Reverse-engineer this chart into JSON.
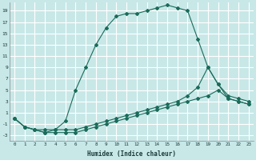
{
  "title": "",
  "xlabel": "Humidex (Indice chaleur)",
  "ylabel": "",
  "bg_color": "#c8e8e8",
  "line_color": "#1a6b5a",
  "grid_color": "#ffffff",
  "xlim": [
    -0.5,
    23.5
  ],
  "ylim": [
    -4,
    20.5
  ],
  "xticks": [
    0,
    1,
    2,
    3,
    4,
    5,
    6,
    7,
    8,
    9,
    10,
    11,
    12,
    13,
    14,
    15,
    16,
    17,
    18,
    19,
    20,
    21,
    22,
    23
  ],
  "yticks": [
    -3,
    -1,
    1,
    3,
    5,
    7,
    9,
    11,
    13,
    15,
    17,
    19
  ],
  "line1_x": [
    0,
    1,
    2,
    3,
    4,
    5,
    6,
    7,
    8,
    9,
    10,
    11,
    12,
    13,
    14,
    15,
    16,
    17,
    18,
    19,
    20,
    21,
    22,
    23
  ],
  "line1_y": [
    0,
    -1.5,
    -2,
    -2,
    -2,
    -0.5,
    5,
    9,
    13,
    16,
    18,
    18.5,
    18.5,
    19,
    19.5,
    20,
    19.5,
    19,
    14,
    9,
    6,
    3.5,
    3,
    2.5
  ],
  "line2_x": [
    0,
    1,
    2,
    3,
    4,
    5,
    6,
    7,
    8,
    9,
    10,
    11,
    12,
    13,
    14,
    15,
    16,
    17,
    18,
    19,
    20,
    21,
    22,
    23
  ],
  "line2_y": [
    0,
    -1.5,
    -2,
    -2.5,
    -2,
    -2,
    -2,
    -1.5,
    -1,
    -0.5,
    0,
    0.5,
    1,
    1.5,
    2,
    2.5,
    3,
    4,
    5.5,
    9,
    6,
    4,
    3.5,
    3
  ],
  "line3_x": [
    0,
    1,
    2,
    3,
    4,
    5,
    6,
    7,
    8,
    9,
    10,
    11,
    12,
    13,
    14,
    15,
    16,
    17,
    18,
    19,
    20,
    21,
    22,
    23
  ],
  "line3_y": [
    0,
    -1.5,
    -2,
    -2.5,
    -2.5,
    -2.5,
    -2.5,
    -2,
    -1.5,
    -1,
    -0.5,
    0,
    0.5,
    1,
    1.5,
    2,
    2.5,
    3,
    3.5,
    4,
    5,
    3.5,
    3,
    2.5
  ]
}
